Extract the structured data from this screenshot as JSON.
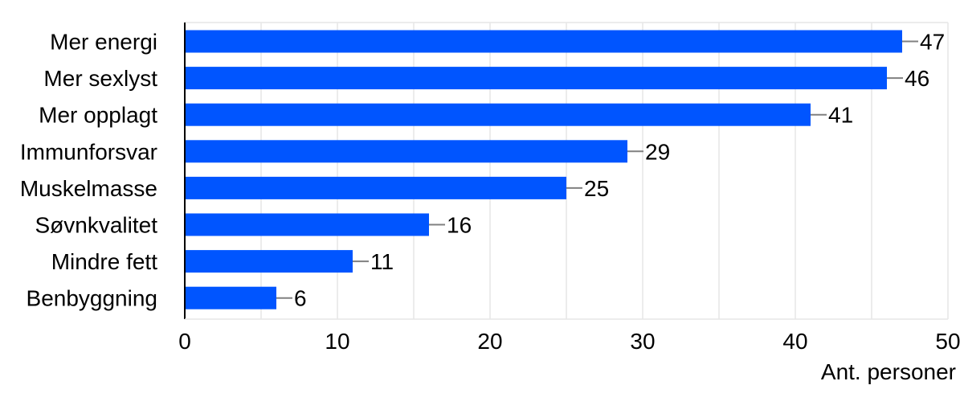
{
  "chart_data": {
    "type": "bar",
    "orientation": "horizontal",
    "categories": [
      "Mer energi",
      "Mer sexlyst",
      "Mer opplagt",
      "Immunforsvar",
      "Muskelmasse",
      "Søvnkvalitet",
      "Mindre fett",
      "Benbyggning"
    ],
    "values": [
      47,
      46,
      41,
      29,
      25,
      16,
      11,
      6
    ],
    "value_labels": [
      "47",
      "46",
      "41",
      "29",
      "25",
      "16",
      "11",
      "6"
    ],
    "xlabel": "Ant. personer",
    "ylabel": "",
    "xlim": [
      0,
      50
    ],
    "xticks": [
      0,
      10,
      20,
      30,
      40,
      50
    ],
    "xtick_labels": [
      "0",
      "10",
      "20",
      "30",
      "40",
      "50"
    ],
    "grid": "vertical",
    "bar_color": "#0055ff",
    "grid_color": "#e6e6e6",
    "axis_color": "#000000",
    "leader_color": "#808080"
  }
}
